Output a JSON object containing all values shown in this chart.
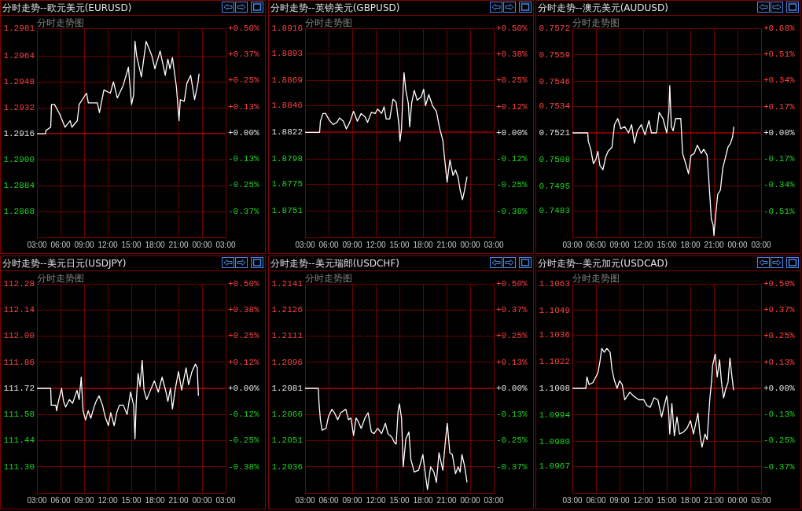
{
  "chart_data": [
    {
      "type": "line",
      "title": "分时走势--欧元美元(EURUSD)",
      "subtitle": "分时走势图",
      "color": "#ffffff",
      "marker": "none",
      "line_style": "solid",
      "grid": true,
      "x": [
        "2000-01-01T03:00",
        "2000-01-01T04:05",
        "2000-01-01T04:09",
        "2000-01-01T04:45",
        "2000-01-01T04:51",
        "2000-01-01T05:14",
        "2000-01-01T05:54",
        "2000-01-01T06:34",
        "2000-01-01T07:13",
        "2000-01-01T07:27",
        "2000-01-01T08:08",
        "2000-01-01T08:22",
        "2000-01-01T09:18",
        "2000-01-01T09:32",
        "2000-01-01T10:41",
        "2000-01-01T10:57",
        "2000-01-01T11:31",
        "2000-01-01T12:20",
        "2000-01-01T12:44",
        "2000-01-01T13:13",
        "2000-01-01T13:59",
        "2000-01-01T14:38",
        "2000-01-01T15:02",
        "2000-01-01T15:18",
        "2000-01-01T15:28",
        "2000-01-01T15:41",
        "2000-01-01T16:17",
        "2000-01-01T16:53",
        "2000-01-01T17:37",
        "2000-01-01T18:00",
        "2000-01-01T18:40",
        "2000-01-01T19:19",
        "2000-01-01T19:39",
        "2000-01-01T19:55",
        "2000-01-01T20:14",
        "2000-01-01T20:44",
        "2000-01-01T21:04",
        "2000-01-01T21:14",
        "2000-01-01T21:44",
        "2000-01-01T22:04",
        "2000-01-01T22:33",
        "2000-01-01T23:03",
        "2000-01-01T23:28",
        "2000-01-01T23:37"
      ],
      "values": [
        1.2916,
        1.2916,
        1.2918,
        1.292,
        1.2934,
        1.2934,
        1.2928,
        1.292,
        1.2924,
        1.292,
        1.2924,
        1.2934,
        1.2941,
        1.2935,
        1.2935,
        1.2929,
        1.2943,
        1.2941,
        1.2948,
        1.2938,
        1.2946,
        1.2957,
        1.2934,
        1.294,
        1.2973,
        1.2964,
        1.2951,
        1.2973,
        1.2964,
        1.2956,
        1.2967,
        1.2952,
        1.2962,
        1.2956,
        1.2963,
        1.2945,
        1.2924,
        1.2937,
        1.2936,
        1.2947,
        1.2952,
        1.2937,
        1.2947,
        1.2953
      ],
      "xlim": [
        "2000-01-01T03:00",
        "2000-01-02T03:00"
      ],
      "xticks": [
        {
          "value": "2000-01-01T03:00",
          "label": "03:00"
        },
        {
          "value": "2000-01-01T06:00",
          "label": "06:00"
        },
        {
          "value": "2000-01-01T09:00",
          "label": "09:00"
        },
        {
          "value": "2000-01-01T12:00",
          "label": "12:00"
        },
        {
          "value": "2000-01-01T15:00",
          "label": "15:00"
        },
        {
          "value": "2000-01-01T18:00",
          "label": "18:00"
        },
        {
          "value": "2000-01-01T21:00",
          "label": "21:00"
        },
        {
          "value": "2000-01-02T00:00",
          "label": "00:00"
        },
        {
          "value": "2000-01-02T03:00",
          "label": "03:00"
        }
      ],
      "ylim": [
        1.2852,
        1.2981
      ],
      "yticks": [
        1.2981,
        1.2964,
        1.2948,
        1.2932,
        1.2916,
        {
          "value": 1.29,
          "label": "1.2900"
        },
        1.2884,
        1.2868
      ],
      "y2lim": [
        -0.5,
        0.5
      ],
      "y2ticks": [
        {
          "value": 0.5,
          "label": "+0.50%"
        },
        {
          "value": 0.375,
          "label": "+0.37%"
        },
        {
          "value": 0.25,
          "label": "+0.25%"
        },
        {
          "value": 0.125,
          "label": "+0.13%"
        },
        {
          "value": 0,
          "label": "+0.00%"
        },
        {
          "value": -0.125,
          "label": "-0.13%"
        },
        {
          "value": -0.25,
          "label": "-0.25%"
        },
        {
          "value": -0.375,
          "label": "-0.37%"
        }
      ],
      "ref_lines": [
        {
          "axis": "y",
          "value": 1.2916,
          "color": "#800000"
        }
      ]
    },
    {
      "type": "line",
      "title": "分时走势--英镑美元(GBPUSD)",
      "subtitle": "分时走势图",
      "color": "#ffffff",
      "marker": "none",
      "line_style": "solid",
      "grid": true,
      "x": [
        "2000-01-01T03:00",
        "2000-01-01T04:51",
        "2000-01-01T04:57",
        "2000-01-01T05:16",
        "2000-01-01T05:36",
        "2000-01-01T06:05",
        "2000-01-01T06:34",
        "2000-01-01T07:03",
        "2000-01-01T07:23",
        "2000-01-01T07:52",
        "2000-01-01T08:15",
        "2000-01-01T08:41",
        "2000-01-01T09:10",
        "2000-01-01T09:39",
        "2000-01-01T10:08",
        "2000-01-01T10:37",
        "2000-01-01T10:57",
        "2000-01-01T11:26",
        "2000-01-01T11:55",
        "2000-01-01T12:14",
        "2000-01-01T12:44",
        "2000-01-01T13:03",
        "2000-01-01T13:19",
        "2000-01-01T13:46",
        "2000-01-01T14:11",
        "2000-01-01T14:35",
        "2000-01-01T14:56",
        "2000-01-01T15:04",
        "2000-01-01T15:16",
        "2000-01-01T15:23",
        "2000-01-01T15:35",
        "2000-01-01T15:49",
        "2000-01-01T16:08",
        "2000-01-01T16:18",
        "2000-01-01T16:34",
        "2000-01-01T16:53",
        "2000-01-01T17:16",
        "2000-01-01T17:46",
        "2000-01-01T18:05",
        "2000-01-01T18:19",
        "2000-01-01T18:44",
        "2000-01-01T19:13",
        "2000-01-01T19:42",
        "2000-01-01T20:08",
        "2000-01-01T20:31",
        "2000-01-01T20:46",
        "2000-01-01T21:04",
        "2000-01-01T21:25",
        "2000-01-01T21:49",
        "2000-01-01T22:08",
        "2000-01-01T22:28",
        "2000-01-01T22:43",
        "2000-01-01T23:01",
        "2000-01-01T23:16",
        "2000-01-01T23:36"
      ],
      "values": [
        1.8822,
        1.8822,
        1.8832,
        1.8839,
        1.8839,
        1.8833,
        1.8829,
        1.8831,
        1.8835,
        1.8832,
        1.8825,
        1.8831,
        1.8841,
        1.8832,
        1.8839,
        1.8836,
        1.8831,
        1.884,
        1.8839,
        1.8843,
        1.8839,
        1.8845,
        1.8834,
        1.8834,
        1.8852,
        1.8849,
        1.8829,
        1.8814,
        1.8825,
        1.8847,
        1.8876,
        1.886,
        1.8848,
        1.8827,
        1.8849,
        1.886,
        1.8851,
        1.8854,
        1.8861,
        1.8846,
        1.8856,
        1.8846,
        1.8841,
        1.8825,
        1.8815,
        1.8797,
        1.8777,
        1.8797,
        1.8783,
        1.8788,
        1.8781,
        1.877,
        1.8761,
        1.8769,
        1.8782
      ],
      "xlim": [
        "2000-01-01T03:00",
        "2000-01-02T03:00"
      ],
      "xticks": [
        {
          "value": "2000-01-01T03:00",
          "label": "03:00"
        },
        {
          "value": "2000-01-01T06:00",
          "label": "06:00"
        },
        {
          "value": "2000-01-01T09:00",
          "label": "09:00"
        },
        {
          "value": "2000-01-01T12:00",
          "label": "12:00"
        },
        {
          "value": "2000-01-01T15:00",
          "label": "15:00"
        },
        {
          "value": "2000-01-01T18:00",
          "label": "18:00"
        },
        {
          "value": "2000-01-01T21:00",
          "label": "21:00"
        },
        {
          "value": "2000-01-02T00:00",
          "label": "00:00"
        },
        {
          "value": "2000-01-02T03:00",
          "label": "03:00"
        }
      ],
      "ylim": [
        1.8727,
        1.8916
      ],
      "yticks": [
        1.8916,
        1.8893,
        1.8869,
        1.8846,
        1.8822,
        1.8798,
        1.8775,
        1.8751
      ],
      "y2lim": [
        -0.5,
        0.5
      ],
      "y2ticks": [
        {
          "value": 0.5,
          "label": "+0.50%"
        },
        {
          "value": 0.375,
          "label": "+0.38%"
        },
        {
          "value": 0.25,
          "label": "+0.25%"
        },
        {
          "value": 0.125,
          "label": "+0.12%"
        },
        {
          "value": 0,
          "label": "+0.00%"
        },
        {
          "value": -0.125,
          "label": "-0.12%"
        },
        {
          "value": -0.25,
          "label": "-0.25%"
        },
        {
          "value": -0.375,
          "label": "-0.38%"
        }
      ],
      "ref_lines": [
        {
          "axis": "y",
          "value": 1.8822,
          "color": "#800000"
        }
      ]
    },
    {
      "type": "line",
      "title": "分时走势--澳元美元(AUDUSD)",
      "subtitle": "分时走势图",
      "color": "#ffffff",
      "marker": "none",
      "line_style": "solid",
      "grid": true,
      "x": [
        "2000-01-01T03:00",
        "2000-01-01T04:57",
        "2000-01-01T05:01",
        "2000-01-01T05:20",
        "2000-01-01T05:40",
        "2000-01-01T05:59",
        "2000-01-01T06:14",
        "2000-01-01T06:30",
        "2000-01-01T06:53",
        "2000-01-01T07:13",
        "2000-01-01T07:32",
        "2000-01-01T08:02",
        "2000-01-01T08:21",
        "2000-01-01T08:46",
        "2000-01-01T09:10",
        "2000-01-01T09:39",
        "2000-01-01T10:08",
        "2000-01-01T10:32",
        "2000-01-01T10:53",
        "2000-01-01T11:16",
        "2000-01-01T11:46",
        "2000-01-01T12:14",
        "2000-01-01T12:44",
        "2000-01-01T13:03",
        "2000-01-01T13:42",
        "2000-01-01T14:02",
        "2000-01-01T14:31",
        "2000-01-01T15:00",
        "2000-01-01T15:16",
        "2000-01-01T15:23",
        "2000-01-01T15:35",
        "2000-01-01T15:49",
        "2000-01-01T16:08",
        "2000-01-01T16:47",
        "2000-01-01T17:01",
        "2000-01-01T17:20",
        "2000-01-01T17:46",
        "2000-01-01T18:05",
        "2000-01-01T18:30",
        "2000-01-01T18:53",
        "2000-01-01T19:23",
        "2000-01-01T19:42",
        "2000-01-01T20:08",
        "2000-01-01T20:21",
        "2000-01-01T20:31",
        "2000-01-01T20:40",
        "2000-01-01T20:54",
        "2000-01-01T21:00",
        "2000-01-01T21:13",
        "2000-01-01T21:29",
        "2000-01-01T21:49",
        "2000-01-01T22:08",
        "2000-01-01T22:28",
        "2000-01-01T22:47",
        "2000-01-01T23:07",
        "2000-01-01T23:22",
        "2000-01-01T23:32"
      ],
      "values": [
        0.7521,
        0.7521,
        0.7517,
        0.7513,
        0.7506,
        0.7508,
        0.7512,
        0.7505,
        0.7503,
        0.7509,
        0.7512,
        0.7514,
        0.7525,
        0.7528,
        0.7523,
        0.7524,
        0.7521,
        0.7525,
        0.7516,
        0.7522,
        0.7525,
        0.752,
        0.7527,
        0.7521,
        0.7521,
        0.7531,
        0.7528,
        0.7521,
        0.7531,
        0.7544,
        0.7524,
        0.7522,
        0.7528,
        0.7528,
        0.7511,
        0.7507,
        0.7501,
        0.751,
        0.7511,
        0.7515,
        0.7511,
        0.7513,
        0.751,
        0.7498,
        0.7488,
        0.7479,
        0.7476,
        0.7471,
        0.7481,
        0.7491,
        0.7493,
        0.7504,
        0.7509,
        0.7514,
        0.7516,
        0.7519,
        0.7524
      ],
      "xlim": [
        "2000-01-01T03:00",
        "2000-01-02T03:00"
      ],
      "xticks": [
        {
          "value": "2000-01-01T03:00",
          "label": "03:00"
        },
        {
          "value": "2000-01-01T06:00",
          "label": "06:00"
        },
        {
          "value": "2000-01-01T09:00",
          "label": "09:00"
        },
        {
          "value": "2000-01-01T12:00",
          "label": "12:00"
        },
        {
          "value": "2000-01-01T15:00",
          "label": "15:00"
        },
        {
          "value": "2000-01-01T18:00",
          "label": "18:00"
        },
        {
          "value": "2000-01-01T21:00",
          "label": "21:00"
        },
        {
          "value": "2000-01-02T00:00",
          "label": "00:00"
        },
        {
          "value": "2000-01-02T03:00",
          "label": "03:00"
        }
      ],
      "ylim": [
        0.747,
        0.7572
      ],
      "yticks": [
        0.7572,
        0.7559,
        0.7546,
        0.7534,
        0.7521,
        0.7508,
        0.7495,
        0.7483
      ],
      "y2lim": [
        -0.68,
        0.68
      ],
      "y2ticks": [
        {
          "value": 0.68,
          "label": "+0.68%"
        },
        {
          "value": 0.51,
          "label": "+0.51%"
        },
        {
          "value": 0.34,
          "label": "+0.34%"
        },
        {
          "value": 0.17,
          "label": "+0.17%"
        },
        {
          "value": 0,
          "label": "+0.00%"
        },
        {
          "value": -0.17,
          "label": "-0.17%"
        },
        {
          "value": -0.34,
          "label": "-0.34%"
        },
        {
          "value": -0.51,
          "label": "-0.51%"
        }
      ],
      "ref_lines": [
        {
          "axis": "y",
          "value": 0.7521,
          "color": "#800000"
        }
      ]
    },
    {
      "type": "line",
      "title": "分时走势--美元日元(USDJPY)",
      "subtitle": "分时走势图",
      "color": "#ffffff",
      "marker": "none",
      "line_style": "solid",
      "grid": true,
      "x": [
        "2000-01-01T03:00",
        "2000-01-01T04:45",
        "2000-01-01T04:49",
        "2000-01-01T05:24",
        "2000-01-01T05:30",
        "2000-01-01T05:44",
        "2000-01-01T06:08",
        "2000-01-01T06:23",
        "2000-01-01T06:39",
        "2000-01-01T07:07",
        "2000-01-01T07:32",
        "2000-01-01T08:06",
        "2000-01-01T08:22",
        "2000-01-01T08:38",
        "2000-01-01T08:52",
        "2000-01-01T09:11",
        "2000-01-01T09:31",
        "2000-01-01T09:51",
        "2000-01-01T10:11",
        "2000-01-01T10:31",
        "2000-01-01T10:54",
        "2000-01-01T11:20",
        "2000-01-01T11:40",
        "2000-01-01T12:05",
        "2000-01-01T12:23",
        "2000-01-01T12:49",
        "2000-01-01T13:09",
        "2000-01-01T13:29",
        "2000-01-01T13:59",
        "2000-01-01T14:28",
        "2000-01-01T14:54",
        "2000-01-01T15:18",
        "2000-01-01T15:28",
        "2000-01-01T15:38",
        "2000-01-01T15:52",
        "2000-01-01T16:07",
        "2000-01-01T16:23",
        "2000-01-01T16:37",
        "2000-01-01T16:57",
        "2000-01-01T17:26",
        "2000-01-01T17:56",
        "2000-01-01T18:26",
        "2000-01-01T18:55",
        "2000-01-01T19:25",
        "2000-01-01T19:39",
        "2000-01-01T19:59",
        "2000-01-01T20:14",
        "2000-01-01T20:34",
        "2000-01-01T21:00",
        "2000-01-01T21:24",
        "2000-01-01T21:58",
        "2000-01-01T22:17",
        "2000-01-01T22:43",
        "2000-01-01T23:09",
        "2000-01-01T23:23",
        "2000-01-01T23:32"
      ],
      "values": [
        111.72,
        111.72,
        111.63,
        111.63,
        111.6,
        111.65,
        111.72,
        111.65,
        111.62,
        111.66,
        111.64,
        111.71,
        111.66,
        111.78,
        111.6,
        111.55,
        111.6,
        111.56,
        111.61,
        111.65,
        111.68,
        111.63,
        111.57,
        111.52,
        111.59,
        111.52,
        111.59,
        111.63,
        111.63,
        111.58,
        111.7,
        111.63,
        111.45,
        111.65,
        111.8,
        111.73,
        111.87,
        111.71,
        111.66,
        111.71,
        111.76,
        111.7,
        111.78,
        111.7,
        111.65,
        111.72,
        111.61,
        111.71,
        111.81,
        111.71,
        111.83,
        111.74,
        111.81,
        111.85,
        111.83,
        111.68
      ],
      "xlim": [
        "2000-01-01T03:00",
        "2000-01-02T03:00"
      ],
      "xticks": [
        {
          "value": "2000-01-01T03:00",
          "label": "03:00"
        },
        {
          "value": "2000-01-01T06:00",
          "label": "06:00"
        },
        {
          "value": "2000-01-01T09:00",
          "label": "09:00"
        },
        {
          "value": "2000-01-01T12:00",
          "label": "12:00"
        },
        {
          "value": "2000-01-01T15:00",
          "label": "15:00"
        },
        {
          "value": "2000-01-01T18:00",
          "label": "18:00"
        },
        {
          "value": "2000-01-01T21:00",
          "label": "21:00"
        },
        {
          "value": "2000-01-02T00:00",
          "label": "00:00"
        },
        {
          "value": "2000-01-02T03:00",
          "label": "03:00"
        }
      ],
      "ylim": [
        111.16,
        112.28
      ],
      "yticks": [
        112.28,
        112.14,
        {
          "value": 112,
          "label": "112.00"
        },
        111.86,
        111.72,
        111.58,
        111.44,
        {
          "value": 111.3,
          "label": "111.30"
        }
      ],
      "y2lim": [
        -0.5,
        0.5
      ],
      "y2ticks": [
        {
          "value": 0.5,
          "label": "+0.50%"
        },
        {
          "value": 0.375,
          "label": "+0.38%"
        },
        {
          "value": 0.25,
          "label": "+0.25%"
        },
        {
          "value": 0.125,
          "label": "+0.12%"
        },
        {
          "value": 0,
          "label": "+0.00%"
        },
        {
          "value": -0.125,
          "label": "-0.12%"
        },
        {
          "value": -0.25,
          "label": "-0.25%"
        },
        {
          "value": -0.375,
          "label": "-0.38%"
        }
      ],
      "ref_lines": [
        {
          "axis": "y",
          "value": 111.72,
          "color": "#800000"
        }
      ]
    },
    {
      "type": "line",
      "title": "分时走势--美元瑞郎(USDCHF)",
      "subtitle": "分时走势图",
      "color": "#ffffff",
      "marker": "none",
      "line_style": "solid",
      "grid": true,
      "x": [
        "2000-01-01T03:00",
        "2000-01-01T04:41",
        "2000-01-01T04:47",
        "2000-01-01T04:57",
        "2000-01-01T05:10",
        "2000-01-01T05:40",
        "2000-01-01T05:59",
        "2000-01-01T06:25",
        "2000-01-01T06:44",
        "2000-01-01T07:09",
        "2000-01-01T07:32",
        "2000-01-01T08:11",
        "2000-01-01T08:31",
        "2000-01-01T08:50",
        "2000-01-01T09:10",
        "2000-01-01T09:29",
        "2000-01-01T09:45",
        "2000-01-01T10:08",
        "2000-01-01T10:37",
        "2000-01-01T11:01",
        "2000-01-01T11:26",
        "2000-01-01T11:46",
        "2000-01-01T12:14",
        "2000-01-01T12:44",
        "2000-01-01T13:13",
        "2000-01-01T13:32",
        "2000-01-01T14:02",
        "2000-01-01T14:21",
        "2000-01-01T14:35",
        "2000-01-01T14:50",
        "2000-01-01T15:00",
        "2000-01-01T15:16",
        "2000-01-01T15:29",
        "2000-01-01T15:49",
        "2000-01-01T16:12",
        "2000-01-01T16:28",
        "2000-01-01T16:53",
        "2000-01-01T17:26",
        "2000-01-01T17:59",
        "2000-01-01T18:19",
        "2000-01-01T18:34",
        "2000-01-01T18:58",
        "2000-01-01T19:23",
        "2000-01-01T19:42",
        "2000-01-01T20:02",
        "2000-01-01T20:31",
        "2000-01-01T20:50",
        "2000-01-01T21:05",
        "2000-01-01T21:25",
        "2000-01-01T21:44",
        "2000-01-01T22:08",
        "2000-01-01T22:28",
        "2000-01-01T22:43",
        "2000-01-01T22:57",
        "2000-01-01T23:16",
        "2000-01-01T23:36"
      ],
      "values": [
        1.2081,
        1.2081,
        1.2072,
        1.2063,
        1.2057,
        1.2058,
        1.2065,
        1.2069,
        1.2067,
        1.2063,
        1.2067,
        1.2069,
        1.2063,
        1.2064,
        1.2054,
        1.2064,
        1.2062,
        1.2058,
        1.2064,
        1.2067,
        1.2056,
        1.2055,
        1.2058,
        1.2055,
        1.2061,
        1.2055,
        1.2053,
        1.205,
        1.2049,
        1.2068,
        1.2072,
        1.2064,
        1.2036,
        1.2052,
        1.2056,
        1.204,
        1.2033,
        1.2034,
        1.2043,
        1.2031,
        1.2023,
        1.2036,
        1.2033,
        1.2027,
        1.2044,
        1.2034,
        1.205,
        1.2061,
        1.2044,
        1.2043,
        1.2032,
        1.2036,
        1.2033,
        1.2043,
        1.2037,
        1.2027
      ],
      "xlim": [
        "2000-01-01T03:00",
        "2000-01-02T03:00"
      ],
      "xticks": [
        {
          "value": "2000-01-01T03:00",
          "label": "03:00"
        },
        {
          "value": "2000-01-01T06:00",
          "label": "06:00"
        },
        {
          "value": "2000-01-01T09:00",
          "label": "09:00"
        },
        {
          "value": "2000-01-01T12:00",
          "label": "12:00"
        },
        {
          "value": "2000-01-01T15:00",
          "label": "15:00"
        },
        {
          "value": "2000-01-01T18:00",
          "label": "18:00"
        },
        {
          "value": "2000-01-01T21:00",
          "label": "21:00"
        },
        {
          "value": "2000-01-02T00:00",
          "label": "00:00"
        },
        {
          "value": "2000-01-02T03:00",
          "label": "03:00"
        }
      ],
      "ylim": [
        1.2021,
        1.2141
      ],
      "yticks": [
        1.2141,
        1.2126,
        1.2111,
        1.2096,
        1.2081,
        1.2066,
        1.2051,
        1.2036
      ],
      "y2lim": [
        -0.5,
        0.5
      ],
      "y2ticks": [
        {
          "value": 0.5,
          "label": "+0.50%"
        },
        {
          "value": 0.375,
          "label": "+0.37%"
        },
        {
          "value": 0.25,
          "label": "+0.25%"
        },
        {
          "value": 0.125,
          "label": "+0.13%"
        },
        {
          "value": 0,
          "label": "+0.00%"
        },
        {
          "value": -0.125,
          "label": "-0.13%"
        },
        {
          "value": -0.25,
          "label": "-0.25%"
        },
        {
          "value": -0.375,
          "label": "-0.37%"
        }
      ],
      "ref_lines": [
        {
          "axis": "y",
          "value": 1.2081,
          "color": "#800000"
        }
      ]
    },
    {
      "type": "line",
      "title": "分时走势--美元加元(USDCAD)",
      "subtitle": "分时走势图",
      "color": "#ffffff",
      "marker": "none",
      "line_style": "solid",
      "grid": true,
      "x": [
        "2000-01-01T03:00",
        "2000-01-01T04:43",
        "2000-01-01T04:51",
        "2000-01-01T05:07",
        "2000-01-01T05:36",
        "2000-01-01T05:59",
        "2000-01-01T06:14",
        "2000-01-01T06:30",
        "2000-01-01T06:44",
        "2000-01-01T07:03",
        "2000-01-01T07:23",
        "2000-01-01T07:48",
        "2000-01-01T08:02",
        "2000-01-01T08:21",
        "2000-01-01T08:41",
        "2000-01-01T09:00",
        "2000-01-01T09:20",
        "2000-01-01T09:39",
        "2000-01-01T09:59",
        "2000-01-01T10:18",
        "2000-01-01T10:47",
        "2000-01-01T11:26",
        "2000-01-01T12:05",
        "2000-01-01T12:28",
        "2000-01-01T12:53",
        "2000-01-01T13:23",
        "2000-01-01T13:52",
        "2000-01-01T14:11",
        "2000-01-01T14:21",
        "2000-01-01T14:41",
        "2000-01-01T15:00",
        "2000-01-01T15:14",
        "2000-01-01T15:23",
        "2000-01-01T15:39",
        "2000-01-01T15:58",
        "2000-01-01T16:18",
        "2000-01-01T16:37",
        "2000-01-01T17:07",
        "2000-01-01T17:35",
        "2000-01-01T18:01",
        "2000-01-01T18:24",
        "2000-01-01T18:58",
        "2000-01-01T19:13",
        "2000-01-01T19:29",
        "2000-01-01T19:52",
        "2000-01-01T20:08",
        "2000-01-01T20:28",
        "2000-01-01T20:41",
        "2000-01-01T20:50",
        "2000-01-01T21:10",
        "2000-01-01T21:25",
        "2000-01-01T21:43",
        "2000-01-01T21:58",
        "2000-01-01T22:14",
        "2000-01-01T22:31",
        "2000-01-01T22:47",
        "2000-01-01T23:02",
        "2000-01-01T23:16",
        "2000-01-01T23:30"
      ],
      "values": [
        1.1008,
        1.1008,
        1.1014,
        1.101,
        1.1011,
        1.1014,
        1.1016,
        1.1022,
        1.1029,
        1.1027,
        1.1029,
        1.1027,
        1.1018,
        1.1012,
        1.1008,
        1.1012,
        1.101,
        1.1002,
        1.1004,
        1.1006,
        1.1004,
        1.1002,
        1.1002,
        1.0999,
        1.0998,
        1.1003,
        1.1002,
        1.0996,
        1.0993,
        1.0999,
        1.1004,
        1.0996,
        1.0984,
        1.1,
        1.0983,
        1.0993,
        1.0984,
        1.0985,
        1.0987,
        1.0991,
        1.0984,
        1.0995,
        1.0984,
        1.0977,
        1.0984,
        1.0981,
        1.1002,
        1.1011,
        1.102,
        1.1026,
        1.1014,
        1.1023,
        1.1011,
        1.1003,
        1.1008,
        1.1011,
        1.1024,
        1.1015,
        1.1007
      ],
      "xlim": [
        "2000-01-01T03:00",
        "2000-01-02T03:00"
      ],
      "xticks": [
        {
          "value": "2000-01-01T03:00",
          "label": "03:00"
        },
        {
          "value": "2000-01-01T06:00",
          "label": "06:00"
        },
        {
          "value": "2000-01-01T09:00",
          "label": "09:00"
        },
        {
          "value": "2000-01-01T12:00",
          "label": "12:00"
        },
        {
          "value": "2000-01-01T15:00",
          "label": "15:00"
        },
        {
          "value": "2000-01-01T18:00",
          "label": "18:00"
        },
        {
          "value": "2000-01-01T21:00",
          "label": "21:00"
        },
        {
          "value": "2000-01-02T00:00",
          "label": "00:00"
        },
        {
          "value": "2000-01-02T03:00",
          "label": "03:00"
        }
      ],
      "ylim": [
        1.0953,
        1.1063
      ],
      "yticks": [
        1.1063,
        1.1049,
        1.1036,
        1.1022,
        1.1008,
        1.0994,
        {
          "value": 1.098,
          "label": "1.0980"
        },
        1.0967
      ],
      "y2lim": [
        -0.5,
        0.5
      ],
      "y2ticks": [
        {
          "value": 0.5,
          "label": "+0.50%"
        },
        {
          "value": 0.375,
          "label": "+0.37%"
        },
        {
          "value": 0.25,
          "label": "+0.25%"
        },
        {
          "value": 0.125,
          "label": "+0.13%"
        },
        {
          "value": 0,
          "label": "+0.00%"
        },
        {
          "value": -0.125,
          "label": "-0.13%"
        },
        {
          "value": -0.25,
          "label": "-0.25%"
        },
        {
          "value": -0.375,
          "label": "-0.37%"
        }
      ],
      "ref_lines": [
        {
          "axis": "y",
          "value": 1.1008,
          "color": "#800000"
        }
      ]
    }
  ]
}
